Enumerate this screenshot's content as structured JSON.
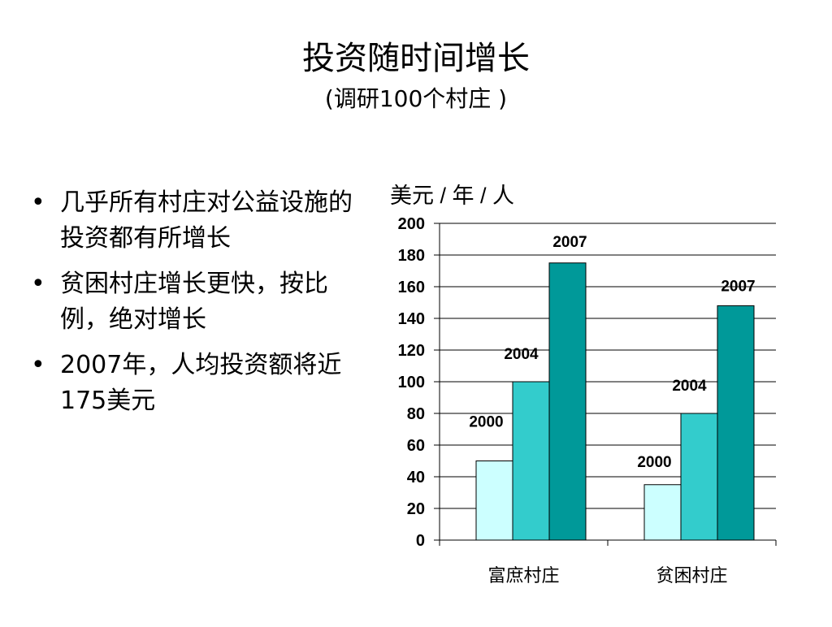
{
  "slide": {
    "title": "投资随时间增长",
    "subtitle": "(调研100个村庄 )",
    "bullets": [
      "几乎所有村庄对公益设施的投资都有所增长",
      "贫困村庄增长更快，按比例，绝对增长",
      "2007年，人均投资额将近175美元"
    ]
  },
  "colors": {
    "series_2000": "#ccffff",
    "series_2004": "#33cccc",
    "series_2007": "#009999"
  },
  "chart_data": {
    "type": "bar",
    "ylabel": "美元 / 年 / 人",
    "categories": [
      "富庶村庄",
      "贫困村庄"
    ],
    "series": [
      {
        "name": "2000",
        "values": [
          50,
          35
        ]
      },
      {
        "name": "2004",
        "values": [
          100,
          80
        ]
      },
      {
        "name": "2007",
        "values": [
          175,
          148
        ]
      }
    ],
    "ylim": [
      0,
      200
    ],
    "yticks": [
      0,
      20,
      40,
      60,
      80,
      100,
      120,
      140,
      160,
      180,
      200
    ],
    "grid": true,
    "legend": "none"
  }
}
